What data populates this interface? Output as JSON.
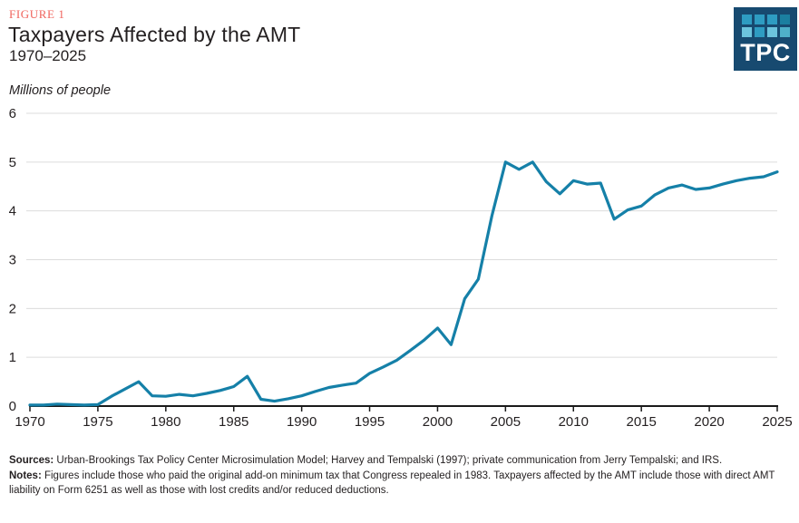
{
  "figure_label": "FIGURE 1",
  "title": "Taxpayers Affected by the AMT",
  "subtitle": "1970–2025",
  "y_axis_title": "Millions of people",
  "logo": {
    "text": "TPC",
    "background": "#174a70",
    "squares": [
      "#2e9cc2",
      "#2e9cc2",
      "#2e9cc2",
      "#1b7fa0",
      "#6cc4dd",
      "#2e9cc2",
      "#6cc4dd",
      "#4fb0c9"
    ]
  },
  "colors": {
    "line": "#1580a8",
    "grid": "#dcdcdc",
    "axis": "#1a1a1a",
    "text": "#231f20",
    "figure_label": "#f0635c"
  },
  "footer": {
    "sources_label": "Sources:",
    "sources_text": " Urban-Brookings Tax Policy Center Microsimulation Model; Harvey and Tempalski (1997); private communication from Jerry Tempalski; and IRS.",
    "notes_label": "Notes:",
    "notes_text": " Figures include those who paid the original add-on minimum tax that Congress repealed in 1983. Taxpayers affected by the AMT include those with direct AMT liability on Form 6251 as well as those with lost credits and/or reduced deductions."
  },
  "chart_data": {
    "type": "line",
    "title": "Taxpayers Affected by the AMT",
    "subtitle": "1970–2025",
    "xlabel": "",
    "ylabel": "Millions of people",
    "xlim": [
      1970,
      2025
    ],
    "ylim": [
      0,
      6
    ],
    "x_ticks": [
      1970,
      1975,
      1980,
      1985,
      1990,
      1995,
      2000,
      2005,
      2010,
      2015,
      2020,
      2025
    ],
    "y_ticks": [
      0,
      1,
      2,
      3,
      4,
      5,
      6
    ],
    "grid": "horizontal",
    "legend_position": "none",
    "series": [
      {
        "name": "Taxpayers affected by the AMT (millions)",
        "x": [
          1970,
          1971,
          1972,
          1973,
          1974,
          1975,
          1976,
          1977,
          1978,
          1979,
          1980,
          1981,
          1982,
          1983,
          1984,
          1985,
          1986,
          1987,
          1988,
          1989,
          1990,
          1991,
          1992,
          1993,
          1994,
          1995,
          1996,
          1997,
          1998,
          1999,
          2000,
          2001,
          2002,
          2003,
          2004,
          2005,
          2006,
          2007,
          2008,
          2009,
          2010,
          2011,
          2012,
          2013,
          2014,
          2015,
          2016,
          2017,
          2018,
          2019,
          2020,
          2021,
          2022,
          2023,
          2024,
          2025
        ],
        "y": [
          0.02,
          0.02,
          0.04,
          0.03,
          0.02,
          0.03,
          0.2,
          0.35,
          0.5,
          0.21,
          0.2,
          0.24,
          0.21,
          0.26,
          0.32,
          0.4,
          0.61,
          0.14,
          0.1,
          0.15,
          0.21,
          0.3,
          0.38,
          0.43,
          0.47,
          0.67,
          0.8,
          0.94,
          1.14,
          1.35,
          1.6,
          1.26,
          2.2,
          2.6,
          3.9,
          5.0,
          4.85,
          5.0,
          4.6,
          4.35,
          4.62,
          4.55,
          4.57,
          3.83,
          4.02,
          4.1,
          4.33,
          4.47,
          4.53,
          4.44,
          4.47,
          4.55,
          4.62,
          4.67,
          4.7,
          4.8
        ]
      }
    ]
  }
}
